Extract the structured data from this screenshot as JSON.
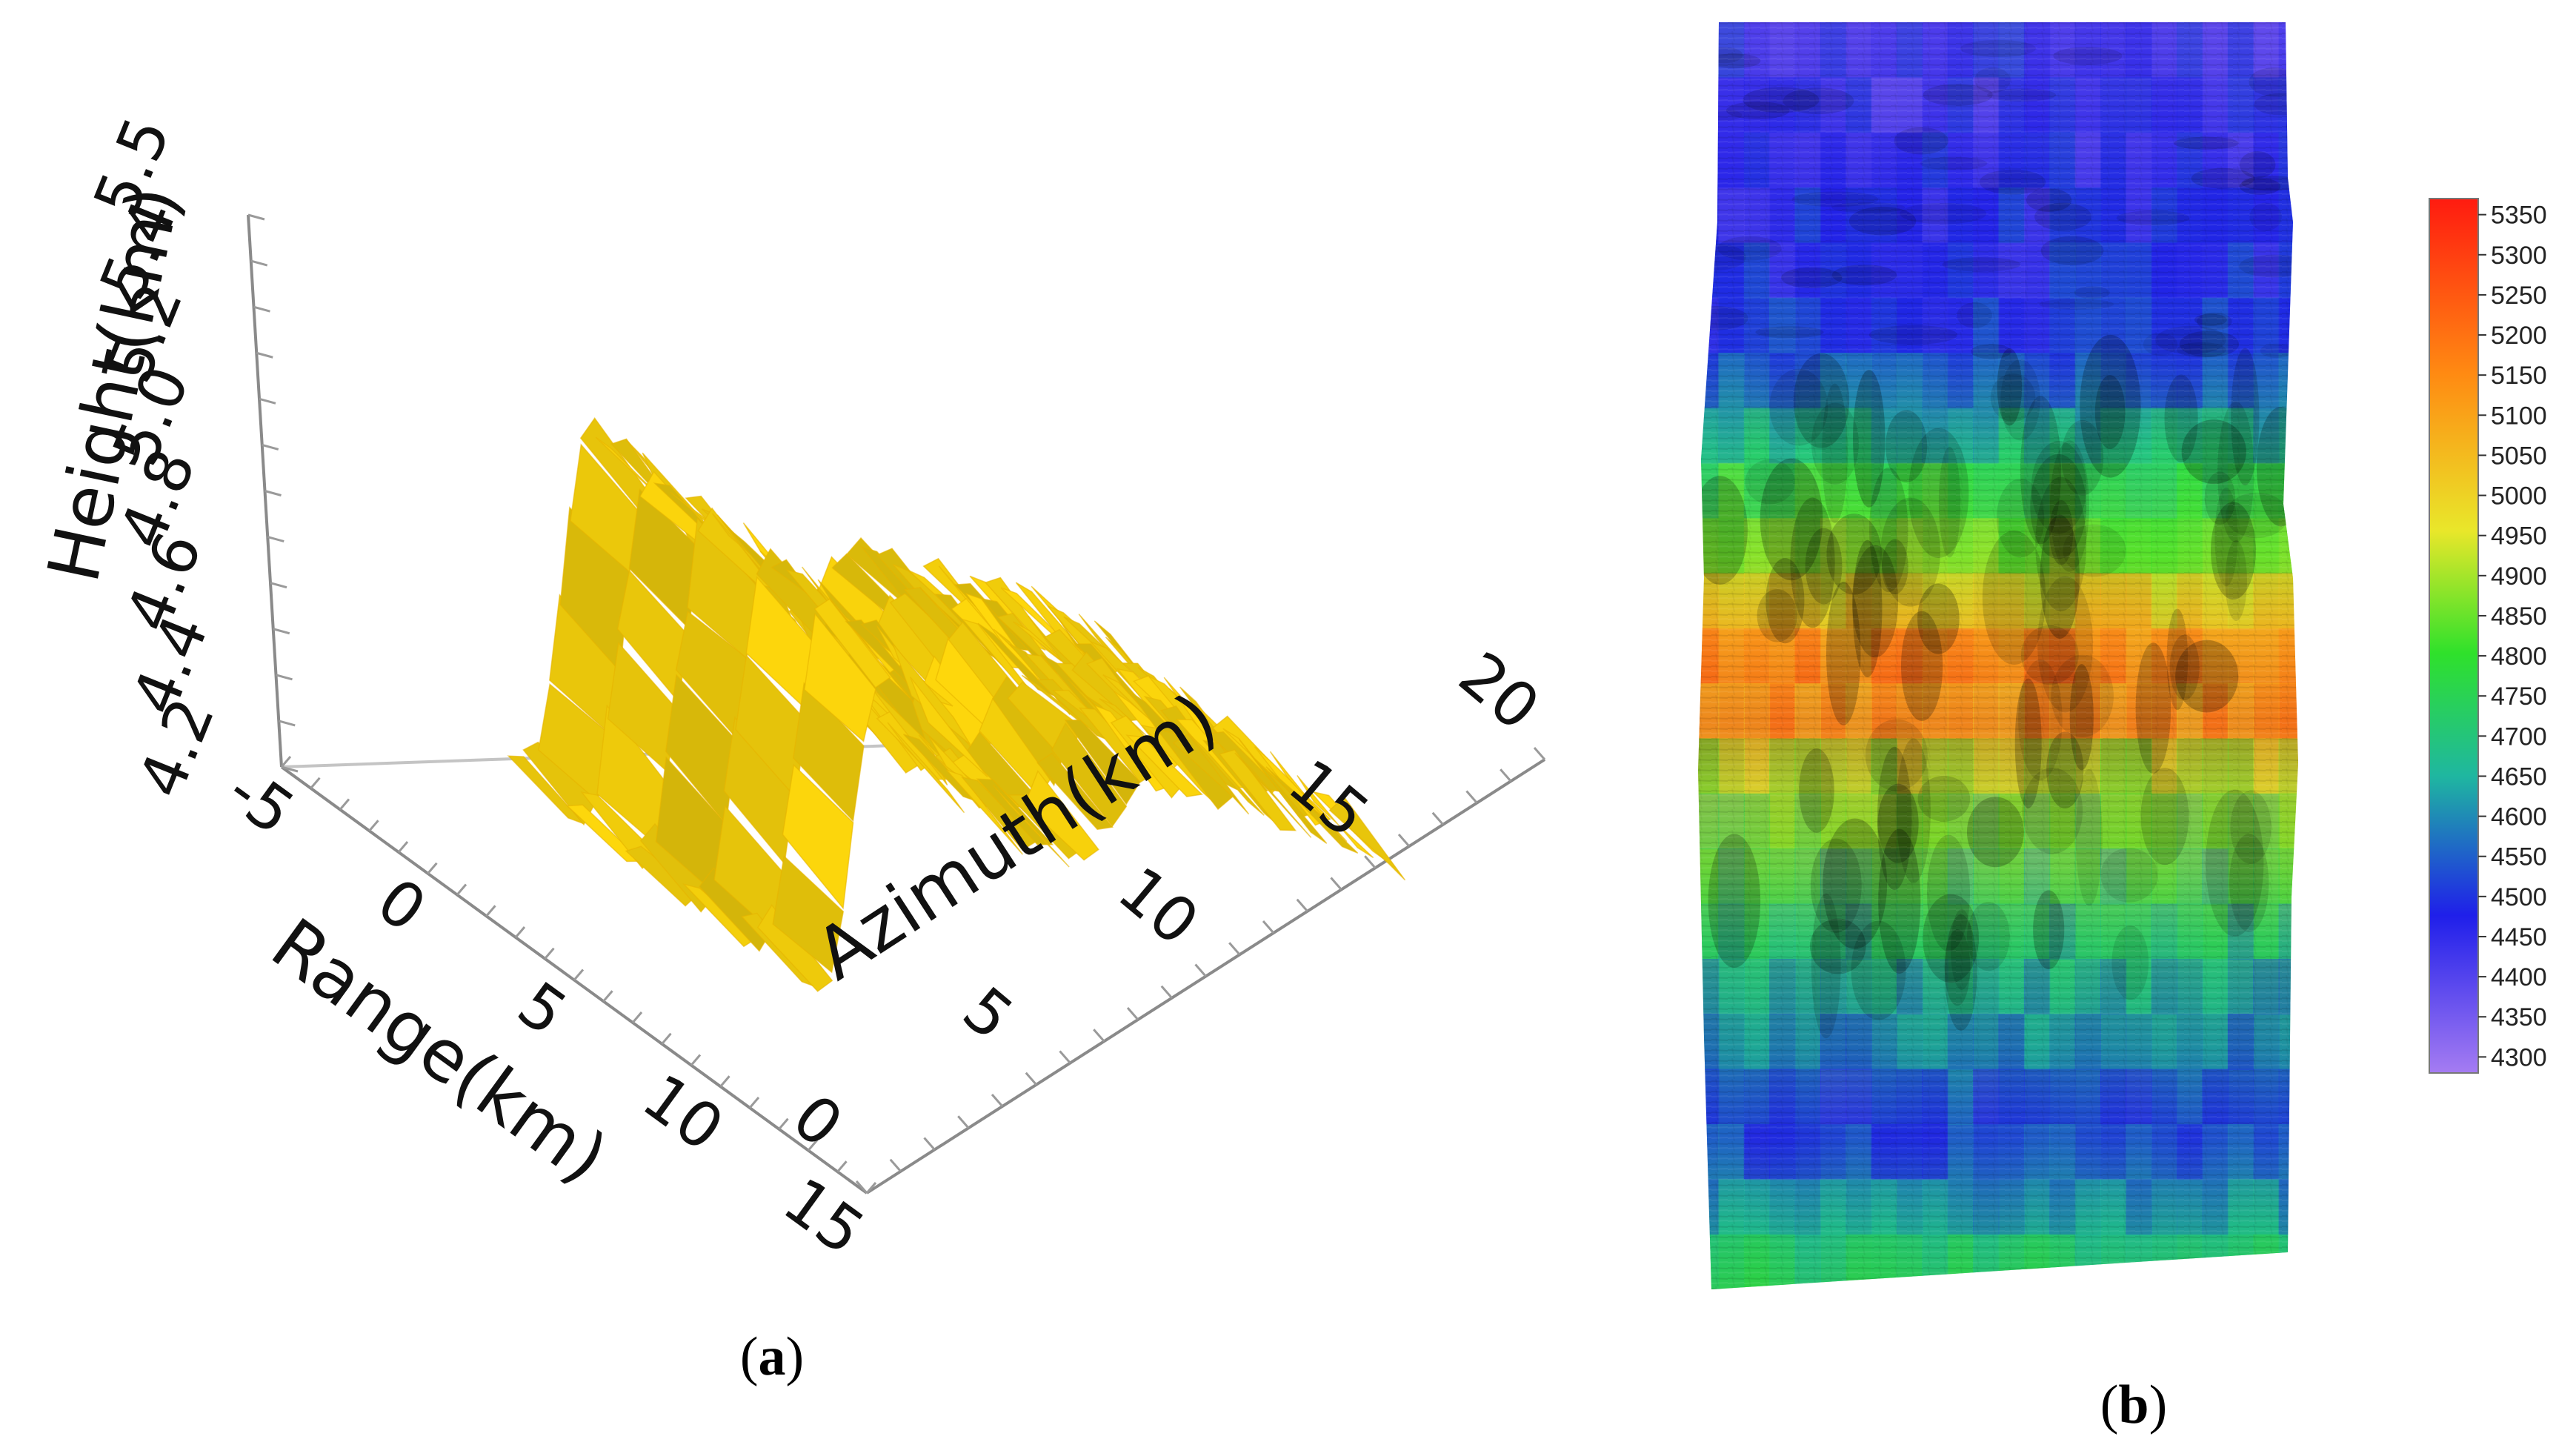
{
  "chart_data": [
    {
      "type": "surface3d",
      "panel_label": "a",
      "xlabel": "Range(km)",
      "ylabel": "Azimuth(km)",
      "zlabel": "Height(km)",
      "x_ticks": [
        "-5",
        "0",
        "5",
        "10",
        "15"
      ],
      "y_ticks": [
        "0",
        "5",
        "10",
        "15",
        "20"
      ],
      "z_ticks": [
        "4.2",
        "4.4",
        "4.6",
        "4.8",
        "5.0",
        "5.2",
        "5.4",
        "5.5"
      ],
      "xlim": [
        -5,
        15
      ],
      "ylim": [
        0,
        20
      ],
      "zlim": [
        4.2,
        5.5
      ],
      "surface_color": "#f2c40c",
      "profile_azimuth_km": [
        0,
        2,
        4,
        6,
        8,
        10,
        12,
        14,
        16,
        18,
        20
      ],
      "profile_height_km": [
        4.55,
        4.6,
        5.35,
        5.25,
        4.9,
        4.85,
        5.05,
        5.0,
        4.95,
        4.9,
        4.8
      ]
    },
    {
      "type": "heatmap",
      "panel_label": "b",
      "colorbar_ticks": [
        5350,
        5300,
        5250,
        5200,
        5150,
        5100,
        5050,
        5000,
        4950,
        4900,
        4850,
        4800,
        4750,
        4700,
        4650,
        4600,
        4550,
        4500,
        4450,
        4400,
        4350,
        4300
      ],
      "colorbar_range": [
        4280,
        5370
      ],
      "colormap": [
        "#a57cf2",
        "#1f1fea",
        "#1fb7a0",
        "#2fe12b",
        "#e9e72a",
        "#ff8a12",
        "#ff1b10"
      ],
      "row_mean_height_m": [
        4450,
        4440,
        4450,
        4460,
        4470,
        4500,
        4550,
        4650,
        4800,
        4900,
        5050,
        5200,
        5100,
        4900,
        4800,
        4700,
        4650,
        4600,
        4550,
        4500,
        4520,
        4600,
        4700
      ]
    }
  ]
}
